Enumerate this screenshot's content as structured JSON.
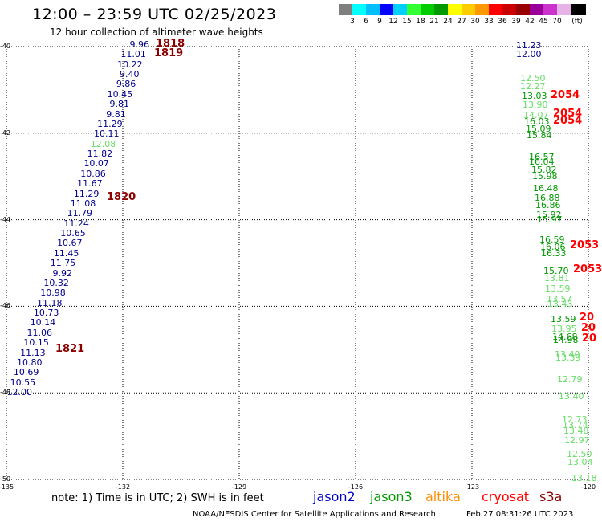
{
  "header": {
    "title": "12:00 – 23:59 UTC 02/25/2023",
    "subtitle": "12 hour collection of altimeter wave heights"
  },
  "scale": {
    "colors": [
      "#7f7f7f",
      "#00ffff",
      "#00bfff",
      "#0000ff",
      "#00cfff",
      "#33ff33",
      "#00cc00",
      "#009900",
      "#ffff00",
      "#ffcc00",
      "#ff9900",
      "#ff0000",
      "#cc0000",
      "#990000",
      "#990099",
      "#cc33cc",
      "#e6b3e6",
      "#000000"
    ],
    "labels": [
      "3",
      "6",
      "9",
      "12",
      "15",
      "18",
      "21",
      "24",
      "27",
      "30",
      "33",
      "36",
      "39",
      "42",
      "45",
      "70",
      "(ft)"
    ]
  },
  "axes": {
    "lat_labels": [
      {
        "value": -40,
        "text": "-40"
      },
      {
        "value": -42,
        "text": "-42"
      },
      {
        "value": -44,
        "text": "-44"
      },
      {
        "value": -46,
        "text": "-46"
      },
      {
        "value": -48,
        "text": "-48"
      },
      {
        "value": -50,
        "text": "-50"
      }
    ],
    "lon_labels": [
      {
        "value": -135,
        "text": "-135"
      },
      {
        "value": -132,
        "text": "-132"
      },
      {
        "value": -129,
        "text": "-129"
      },
      {
        "value": -126,
        "text": "-126"
      },
      {
        "value": -123,
        "text": "-123"
      },
      {
        "value": -120,
        "text": "-120"
      }
    ]
  },
  "colors": {
    "blue": "#00008b",
    "lightgreen": "#66dd66",
    "green": "#009900",
    "red": "#ff0000",
    "darkred": "#8b0000"
  },
  "west_track": {
    "color": "blue",
    "values": [
      "9.96",
      "11.01",
      "10.22",
      "9.40",
      "9.86",
      "10.45",
      "9.81",
      "9.81",
      "11.29",
      "10.11",
      "12.08",
      "11.82",
      "10.07",
      "10.86",
      "11.67",
      "11.29",
      "11.08",
      "11.79",
      "11.24",
      "10.65",
      "10.67",
      "11.45",
      "11.75",
      "9.92",
      "10.32",
      "10.98",
      "11.18",
      "10.73",
      "10.14",
      "11.06",
      "10.15",
      "11.13",
      "10.80",
      "10.69",
      "10.55",
      "12.00"
    ],
    "highlight_index": 10,
    "highlight_color": "lightgreen"
  },
  "west_times": [
    "1818",
    "1819",
    "1820",
    "1821"
  ],
  "east_track": {
    "values": [
      "11.23",
      "12.00",
      "12.50",
      "12.27",
      "13.03",
      "13.90",
      "14.07",
      "16.03",
      "15.09",
      "15.84",
      "16.57",
      "16.04",
      "15.82",
      "15.98",
      "16.48",
      "16.88",
      "16.86",
      "15.92",
      "15.97",
      "16.59",
      "16.06",
      "16.33",
      "15.70",
      "13.81",
      "13.59",
      "13.57",
      "13.43",
      "13.59",
      "13.95",
      "14.68",
      "14.98",
      "13.40",
      "13.39",
      "12.79",
      "13.40",
      "12.73",
      "13.74",
      "13.48",
      "12.97",
      "12.50",
      "13.04",
      "13.18"
    ],
    "colors": [
      "blue",
      "blue",
      "lightgreen",
      "lightgreen",
      "green",
      "lightgreen",
      "lightgreen",
      "green",
      "green",
      "green",
      "green",
      "green",
      "green",
      "green",
      "green",
      "green",
      "green",
      "green",
      "green",
      "green",
      "green",
      "green",
      "green",
      "lightgreen",
      "lightgreen",
      "lightgreen",
      "lightgreen",
      "green",
      "lightgreen",
      "green",
      "green",
      "lightgreen",
      "lightgreen",
      "lightgreen",
      "lightgreen",
      "lightgreen",
      "lightgreen",
      "lightgreen",
      "lightgreen",
      "lightgreen",
      "lightgreen",
      "lightgreen"
    ]
  },
  "east_times": [
    "2054",
    "2054",
    "2054",
    "2053",
    "2053",
    "20",
    "20",
    "20"
  ],
  "note": "note: 1) Time is in UTC; 2) SWH is in feet",
  "satellites": [
    {
      "name": "jason2",
      "color": "#0000cd"
    },
    {
      "name": "jason3",
      "color": "#009900"
    },
    {
      "name": "altika",
      "color": "#ff8c00"
    },
    {
      "name": "cryosat",
      "color": "#ff0000"
    },
    {
      "name": "s3a",
      "color": "#8b0000"
    }
  ],
  "footer": {
    "credit": "NOAA/NESDIS Center for Satellite Applications and Research",
    "stamp": "Feb 27 08:31:26 UTC 2023"
  }
}
